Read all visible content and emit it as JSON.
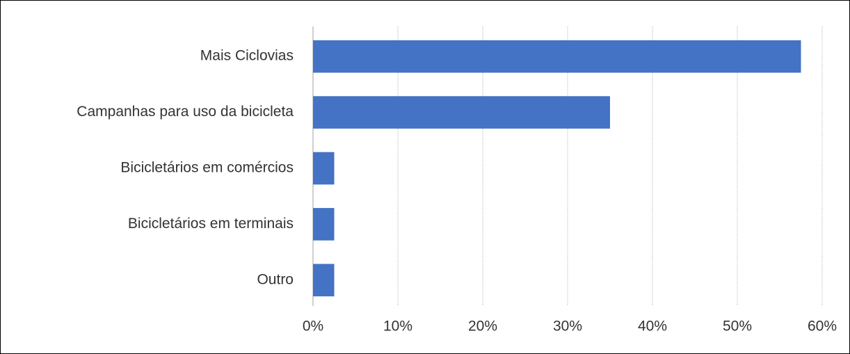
{
  "chart_data": {
    "type": "bar",
    "orientation": "horizontal",
    "categories": [
      "Mais Ciclovias",
      "Campanhas para uso da bicicleta",
      "Bicicletários em comércios",
      "Bicicletários em terminais",
      "Outro"
    ],
    "values": [
      57.5,
      35,
      2.5,
      2.5,
      2.5
    ],
    "color": "#4472c4",
    "xlim": [
      0,
      60
    ],
    "xticks": [
      {
        "value": 0,
        "label": "0%"
      },
      {
        "value": 10,
        "label": "10%"
      },
      {
        "value": 20,
        "label": "20%"
      },
      {
        "value": 30,
        "label": "30%"
      },
      {
        "value": 40,
        "label": "40%"
      },
      {
        "value": 50,
        "label": "50%"
      },
      {
        "value": 60,
        "label": "60%"
      }
    ],
    "grid": true
  }
}
